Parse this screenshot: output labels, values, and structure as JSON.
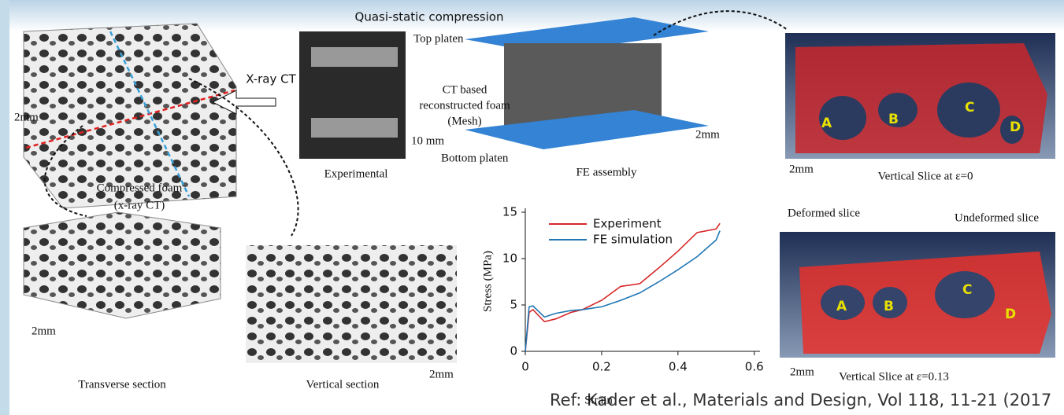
{
  "figure": {
    "top_title": "Quasi-static compression",
    "top_platen": "Top platen",
    "xray": "X-ray CT",
    "mesh_lines": [
      "CT based",
      "reconstructed foam",
      "(Mesh)"
    ],
    "scale_2mm": "2mm",
    "scale_10mm": "10 mm",
    "experimental": "Experimental",
    "fe_assembly": "FE assembly",
    "bottom_platen": "Bottom platen",
    "compressed": [
      "Compressed foam",
      "(x-ray CT)"
    ],
    "slice0": "Vertical Slice at ε=0",
    "slice13": "Vertical Slice at ε=0.13",
    "region_labels": [
      "A",
      "B",
      "C",
      "D"
    ],
    "deformed": "Deformed slice",
    "undeformed": "Undeformed slice",
    "transverse": "Transverse section",
    "vertical": "Vertical section",
    "ref": "Ref: Kader et al., Materials and Design, Vol 118, 11-21 (2017"
  },
  "chart_data": {
    "type": "line",
    "xlabel": "Strain",
    "ylabel": "Stress (MPa)",
    "x": [
      0,
      0.01,
      0.02,
      0.05,
      0.08,
      0.12,
      0.15,
      0.2,
      0.25,
      0.3,
      0.35,
      0.4,
      0.45,
      0.5,
      0.51
    ],
    "series": [
      {
        "name": "Experiment",
        "color": "#d62728",
        "values": [
          0,
          4.2,
          4.5,
          3.2,
          3.5,
          4.2,
          4.5,
          5.5,
          7,
          7.3,
          9,
          10.8,
          12.8,
          13.2,
          13.8
        ]
      },
      {
        "name": "FE simulation",
        "color": "#1f77b4",
        "values": [
          0,
          4.8,
          4.9,
          3.7,
          4.1,
          4.4,
          4.5,
          4.8,
          5.5,
          6.3,
          7.5,
          8.8,
          10.2,
          12,
          13
        ]
      }
    ],
    "xlim": [
      0,
      0.615
    ],
    "ylim": [
      0,
      15
    ],
    "xticks": [
      0,
      0.2,
      0.4,
      0.6
    ],
    "yticks": [
      0,
      5,
      10,
      15
    ]
  }
}
